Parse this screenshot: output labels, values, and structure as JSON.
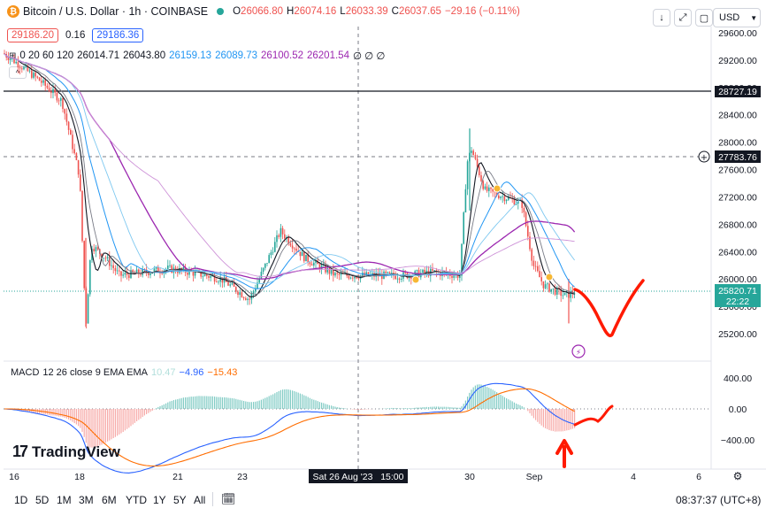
{
  "header": {
    "symbol_title": "Bitcoin / U.S. Dollar · 1h · COINBASE",
    "ohlc": {
      "o_label": "O",
      "o": "26066.80",
      "h_label": "H",
      "h": "26074.16",
      "l_label": "L",
      "l": "26033.39",
      "c_label": "C",
      "c": "26037.65",
      "change": "−29.16 (−0.11%)"
    },
    "sell_price": "29186.20",
    "spread": "0.16",
    "buy_price": "29186.36",
    "ma_indicator": {
      "label": "0 20 60 120",
      "values": [
        "26014.71",
        "26043.80",
        "26159.13",
        "26089.73",
        "26100.52",
        "26201.54"
      ],
      "empty_marks": "∅ ∅ ∅"
    },
    "currency": "USD",
    "colors": {
      "up": "#26a69a",
      "down": "#ef5350",
      "accent": "#2962ff",
      "purple": "#9c27b0"
    }
  },
  "price_axis": {
    "ticks": [
      "29600.00",
      "29200.00",
      "28800.00",
      "28400.00",
      "28000.00",
      "27600.00",
      "27200.00",
      "26800.00",
      "26400.00",
      "26000.00",
      "25600.00",
      "25200.00"
    ],
    "label_hline": "28727.19",
    "label_crosshair": "27783.76",
    "label_last": "25820.71",
    "label_countdown": "22:22"
  },
  "macd": {
    "title": "MACD",
    "params": "12 26 close 9 EMA EMA",
    "hist_value": "10.47",
    "macd_value": "−4.96",
    "signal_value": "−15.43",
    "axis_ticks": [
      "400.00",
      "0.00",
      "−400.00"
    ]
  },
  "time_axis": {
    "ticks": [
      "16",
      "18",
      "21",
      "23",
      "30",
      "Sep",
      "4",
      "6"
    ],
    "crosshair_label": "Sat 26 Aug '23   15:00"
  },
  "bottom_bar": {
    "timeframes": [
      "1D",
      "5D",
      "1M",
      "3M",
      "6M",
      "YTD",
      "1Y",
      "5Y",
      "All"
    ],
    "clock": "08:37:37 (UTC+8)"
  },
  "logo": {
    "text": "TradingView"
  },
  "chart_data": {
    "type": "candlestick",
    "symbol": "Bitcoin / U.S. Dollar",
    "interval": "1h",
    "exchange": "COINBASE",
    "x_ticks": [
      "16",
      "18",
      "21",
      "23",
      "26",
      "30",
      "Sep",
      "4",
      "6"
    ],
    "y_range": [
      25000,
      29800
    ],
    "price_path": [
      [
        "Aug 16",
        29300
      ],
      [
        "Aug 17 00:00",
        29150
      ],
      [
        "Aug 17 06:00",
        28900
      ],
      [
        "Aug 17 12:00",
        28600
      ],
      [
        "Aug 17 18:00",
        27500
      ],
      [
        "Aug 17 21:00",
        25300
      ],
      [
        "Aug 18 00:00",
        26500
      ],
      [
        "Aug 18 06:00",
        26300
      ],
      [
        "Aug 18 12:00",
        26050
      ],
      [
        "Aug 19",
        26100
      ],
      [
        "Aug 20",
        26150
      ],
      [
        "Aug 21",
        26100
      ],
      [
        "Aug 22",
        26000
      ],
      [
        "Aug 22 18:00",
        25700
      ],
      [
        "Aug 23",
        26200
      ],
      [
        "Aug 23 12:00",
        26700
      ],
      [
        "Aug 24",
        26300
      ],
      [
        "Aug 25",
        26050
      ],
      [
        "Aug 26",
        26050
      ],
      [
        "Aug 27",
        26050
      ],
      [
        "Aug 28",
        26100
      ],
      [
        "Aug 29",
        26050
      ],
      [
        "Aug 29 18:00",
        27700
      ],
      [
        "Aug 30 00:00",
        27900
      ],
      [
        "Aug 30 12:00",
        27300
      ],
      [
        "Aug 31 00:00",
        27200
      ],
      [
        "Aug 31 12:00",
        27100
      ],
      [
        "Sep 1 00:00",
        26200
      ],
      [
        "Sep 1 12:00",
        25900
      ],
      [
        "Sep 1 18:00",
        25750
      ],
      [
        "Sep 2",
        25820
      ]
    ],
    "moving_averages": [
      "MA 20",
      "MA 60",
      "MA 120",
      "EMA",
      "EMA",
      "EMA"
    ],
    "horizontal_line": 28727.19,
    "last_price": 25820.71,
    "macd_range": [
      -600,
      600
    ]
  }
}
